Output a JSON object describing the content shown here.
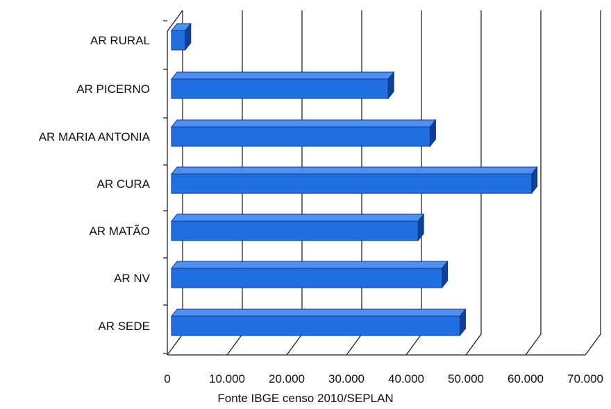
{
  "chart_data": {
    "type": "bar",
    "orientation": "horizontal",
    "style": "3d",
    "categories": [
      "AR RURAL",
      "AR PICERNO",
      "AR MARIA ANTONIA",
      "AR CURA",
      "AR MATÃO",
      "AR NV",
      "AR SEDE"
    ],
    "values": [
      3000,
      37000,
      44000,
      61000,
      42000,
      46000,
      49000
    ],
    "x_ticks": [
      "0",
      "10.000",
      "20.000",
      "30.000",
      "40.000",
      "50.000",
      "60.000",
      "70.000"
    ],
    "xlim": [
      0,
      70000
    ],
    "grid": true,
    "legend": "none",
    "bar_color": "#1f6fe0",
    "bar_top_color": "#4d92f2",
    "bar_side_color": "#0f3f96"
  },
  "source_text": "Fonte IBGE censo 2010/SEPLAN"
}
